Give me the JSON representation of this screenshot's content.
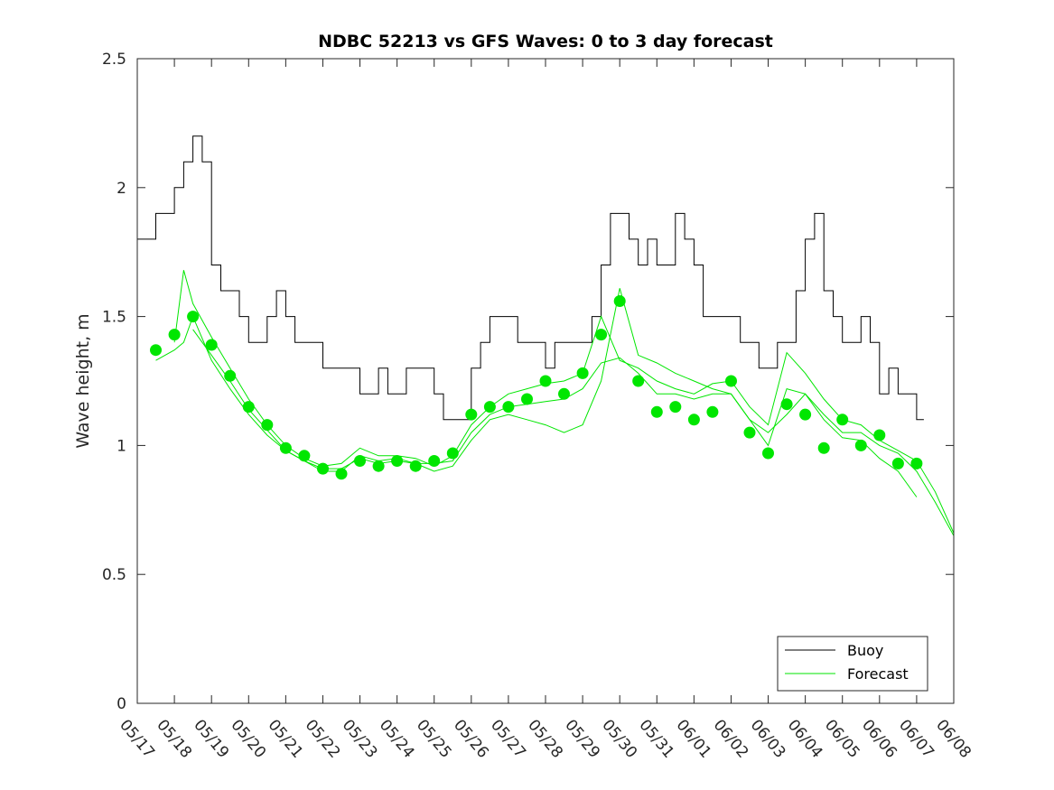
{
  "chart_data": {
    "type": "line",
    "title": "NDBC 52213 vs GFS Waves: 0 to 3 day forecast",
    "xlabel": "",
    "ylabel": "Wave height, m",
    "ylim": [
      0,
      2.5
    ],
    "yticks": [
      "0",
      "0.5",
      "1",
      "1.5",
      "2",
      "2.5"
    ],
    "x_range_days": [
      "05/17",
      "06/08"
    ],
    "xticks": [
      "05/17",
      "05/18",
      "05/19",
      "05/20",
      "05/21",
      "05/22",
      "05/23",
      "05/24",
      "05/25",
      "05/26",
      "05/27",
      "05/28",
      "05/29",
      "05/30",
      "05/31",
      "06/01",
      "06/02",
      "06/03",
      "06/04",
      "06/05",
      "06/06",
      "06/07",
      "06/08"
    ],
    "legend": {
      "location": "bottom-right",
      "entries": [
        "Buoy",
        "Forecast"
      ]
    },
    "colors": {
      "buoy": "#000000",
      "forecast": "#00e600",
      "axes": "#262626"
    },
    "series": [
      {
        "name": "Buoy",
        "style": "line",
        "x": [
          "05/17",
          "05/17 06h",
          "05/17 12h",
          "05/17 18h",
          "05/18",
          "05/18 06h",
          "05/18 12h",
          "05/18 18h",
          "05/19",
          "05/19 06h",
          "05/19 12h",
          "05/19 18h",
          "05/20",
          "05/20 06h",
          "05/20 12h",
          "05/20 18h",
          "05/21",
          "05/21 06h",
          "05/21 12h",
          "05/21 18h",
          "05/22",
          "05/22 06h",
          "05/22 12h",
          "05/22 18h",
          "05/23",
          "05/23 06h",
          "05/23 12h",
          "05/23 18h",
          "05/24",
          "05/24 06h",
          "05/24 12h",
          "05/24 18h",
          "05/25",
          "05/25 06h",
          "05/25 12h",
          "05/25 18h",
          "05/26",
          "05/26 06h",
          "05/26 12h",
          "05/26 18h",
          "05/27",
          "05/27 06h",
          "05/27 12h",
          "05/27 18h",
          "05/28",
          "05/28 06h",
          "05/28 12h",
          "05/28 18h",
          "05/29",
          "05/29 06h",
          "05/29 12h",
          "05/29 18h",
          "05/30",
          "05/30 06h",
          "05/30 12h",
          "05/30 18h",
          "05/31",
          "05/31 06h",
          "05/31 12h",
          "05/31 18h",
          "06/01",
          "06/01 06h",
          "06/01 12h",
          "06/01 18h",
          "06/02",
          "06/02 06h",
          "06/02 12h",
          "06/02 18h",
          "06/03",
          "06/03 06h",
          "06/03 12h",
          "06/03 18h",
          "06/04",
          "06/04 06h",
          "06/04 12h",
          "06/04 18h",
          "06/05",
          "06/05 06h",
          "06/05 12h",
          "06/05 18h",
          "06/06",
          "06/06 06h",
          "06/06 12h",
          "06/06 18h",
          "06/07"
        ],
        "values": [
          1.8,
          1.8,
          1.9,
          1.9,
          2.0,
          2.1,
          2.2,
          2.1,
          1.7,
          1.6,
          1.6,
          1.5,
          1.4,
          1.4,
          1.5,
          1.6,
          1.5,
          1.4,
          1.4,
          1.4,
          1.3,
          1.3,
          1.3,
          1.3,
          1.2,
          1.2,
          1.3,
          1.2,
          1.2,
          1.3,
          1.3,
          1.3,
          1.2,
          1.1,
          1.1,
          1.1,
          1.3,
          1.4,
          1.5,
          1.5,
          1.5,
          1.4,
          1.4,
          1.4,
          1.3,
          1.4,
          1.4,
          1.4,
          1.4,
          1.5,
          1.7,
          1.9,
          1.9,
          1.8,
          1.7,
          1.8,
          1.7,
          1.7,
          1.9,
          1.8,
          1.7,
          1.5,
          1.5,
          1.5,
          1.5,
          1.4,
          1.4,
          1.3,
          1.3,
          1.4,
          1.4,
          1.6,
          1.8,
          1.9,
          1.6,
          1.5,
          1.4,
          1.4,
          1.5,
          1.4,
          1.2,
          1.3,
          1.2,
          1.2,
          1.1
        ]
      },
      {
        "name": "Forecast",
        "style": "markers",
        "x": [
          "05/17 12h",
          "05/18",
          "05/18 12h",
          "05/19",
          "05/19 12h",
          "05/20",
          "05/20 12h",
          "05/21",
          "05/21 12h",
          "05/22",
          "05/22 12h",
          "05/23",
          "05/23 12h",
          "05/24",
          "05/24 12h",
          "05/25",
          "05/25 12h",
          "05/26",
          "05/26 12h",
          "05/27",
          "05/27 12h",
          "05/28",
          "05/28 12h",
          "05/29",
          "05/29 12h",
          "05/30",
          "05/30 12h",
          "05/31",
          "05/31 12h",
          "06/01",
          "06/01 12h",
          "06/02",
          "06/02 12h",
          "06/03",
          "06/03 12h",
          "06/04",
          "06/04 12h",
          "06/05",
          "06/05 12h",
          "06/06",
          "06/06 12h",
          "06/07"
        ],
        "values": [
          1.37,
          1.43,
          1.5,
          1.39,
          1.27,
          1.15,
          1.08,
          0.99,
          0.96,
          0.91,
          0.89,
          0.94,
          0.92,
          0.94,
          0.92,
          0.94,
          0.97,
          1.12,
          1.15,
          1.15,
          1.18,
          1.25,
          1.2,
          1.28,
          1.43,
          1.56,
          1.25,
          1.13,
          1.15,
          1.1,
          1.13,
          1.25,
          1.05,
          0.97,
          1.16,
          1.12,
          0.99,
          1.1,
          1.0,
          1.04,
          0.93,
          0.93
        ]
      },
      {
        "name": "Forecast",
        "style": "line",
        "x": [
          "05/17 12h",
          "05/18",
          "05/18 06h",
          "05/18 12h",
          "05/19",
          "05/19 12h",
          "05/20",
          "05/20 12h",
          "05/21",
          "05/21 12h",
          "05/22",
          "05/22 12h",
          "05/23",
          "05/23 12h",
          "05/24",
          "05/24 12h",
          "05/25",
          "05/25 12h",
          "05/26",
          "05/26 12h",
          "05/27",
          "05/27 12h",
          "05/28",
          "05/28 12h",
          "05/29",
          "05/29 12h",
          "05/30",
          "05/30 12h",
          "05/31",
          "05/31 12h",
          "06/01",
          "06/01 12h",
          "06/02",
          "06/02 12h",
          "06/03",
          "06/03 12h",
          "06/04",
          "06/04 12h",
          "06/05",
          "06/05 12h",
          "06/06",
          "06/06 12h",
          "06/07",
          "06/07 12h",
          "06/08"
        ],
        "values": [
          1.33,
          1.37,
          1.4,
          1.5,
          1.33,
          1.22,
          1.12,
          1.04,
          0.98,
          0.94,
          0.91,
          0.91,
          0.95,
          0.93,
          0.94,
          0.93,
          0.93,
          0.94,
          1.05,
          1.12,
          1.15,
          1.16,
          1.17,
          1.18,
          1.22,
          1.32,
          1.34,
          1.28,
          1.2,
          1.2,
          1.18,
          1.2,
          1.2,
          1.1,
          1.05,
          1.12,
          1.2,
          1.12,
          1.05,
          1.05,
          1.0,
          0.97,
          0.9,
          0.78,
          0.65
        ]
      },
      {
        "name": "Forecast",
        "style": "line",
        "x": [
          "05/18",
          "05/18 06h",
          "05/18 12h",
          "05/19",
          "05/19 12h",
          "05/20",
          "05/20 12h",
          "05/21",
          "05/21 12h",
          "05/22",
          "05/22 12h",
          "05/23",
          "05/23 12h",
          "05/24",
          "05/24 12h",
          "05/25",
          "05/25 12h",
          "05/26",
          "05/26 12h",
          "05/27",
          "05/27 12h",
          "05/28",
          "05/28 12h",
          "05/29",
          "05/29 12h",
          "05/30",
          "05/30 12h",
          "05/31",
          "05/31 12h",
          "06/01",
          "06/01 12h",
          "06/02",
          "06/02 12h",
          "06/03",
          "06/03 12h",
          "06/04",
          "06/04 12h",
          "06/05",
          "06/05 12h",
          "06/06",
          "06/06 12h",
          "06/07",
          "06/07 12h",
          "06/08"
        ],
        "values": [
          1.4,
          1.68,
          1.55,
          1.42,
          1.3,
          1.18,
          1.08,
          1.0,
          0.95,
          0.92,
          0.93,
          0.99,
          0.96,
          0.96,
          0.95,
          0.92,
          0.96,
          1.08,
          1.15,
          1.2,
          1.22,
          1.24,
          1.25,
          1.28,
          1.5,
          1.33,
          1.3,
          1.25,
          1.22,
          1.2,
          1.24,
          1.25,
          1.15,
          1.08,
          1.36,
          1.28,
          1.18,
          1.1,
          1.08,
          1.02,
          0.98,
          0.94,
          0.82,
          0.66
        ]
      },
      {
        "name": "Forecast",
        "style": "line",
        "x": [
          "05/18 12h",
          "05/19",
          "05/19 12h",
          "05/20",
          "05/20 12h",
          "05/21",
          "05/21 12h",
          "05/22",
          "05/22 12h",
          "05/23",
          "05/23 12h",
          "05/24",
          "05/24 12h",
          "05/25",
          "05/25 12h",
          "05/26",
          "05/26 12h",
          "05/27",
          "05/27 12h",
          "05/28",
          "05/28 12h",
          "05/29",
          "05/29 12h",
          "05/30",
          "05/30 12h",
          "05/31",
          "05/31 12h",
          "06/01",
          "06/01 12h",
          "06/02",
          "06/02 12h",
          "06/03",
          "06/03 12h",
          "06/04",
          "06/04 12h",
          "06/05",
          "06/05 12h",
          "06/06",
          "06/06 12h",
          "06/07"
        ],
        "values": [
          1.45,
          1.35,
          1.25,
          1.14,
          1.06,
          0.98,
          0.94,
          0.9,
          0.9,
          0.96,
          0.94,
          0.95,
          0.93,
          0.9,
          0.92,
          1.02,
          1.1,
          1.12,
          1.1,
          1.08,
          1.05,
          1.08,
          1.25,
          1.61,
          1.35,
          1.32,
          1.28,
          1.25,
          1.22,
          1.2,
          1.1,
          1.0,
          1.22,
          1.2,
          1.1,
          1.03,
          1.02,
          0.95,
          0.9,
          0.8
        ]
      }
    ]
  }
}
